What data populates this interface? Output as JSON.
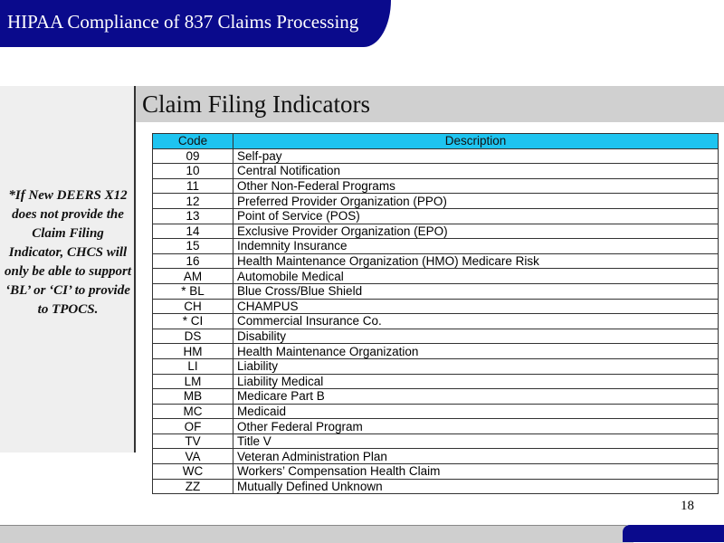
{
  "header": {
    "title": "HIPAA Compliance of 837 Claims Processing"
  },
  "slide_title": "Claim Filing Indicators",
  "note": "*If New DEERS X12 does not provide the Claim Filing Indicator, CHCS will only be able to support ‘BL’ or ‘CI’ to provide to TPOCS.",
  "table": {
    "headers": [
      "Code",
      "Description"
    ],
    "rows": [
      [
        "09",
        "Self-pay"
      ],
      [
        "10",
        "Central Notification"
      ],
      [
        "11",
        "Other Non-Federal Programs"
      ],
      [
        "12",
        "Preferred Provider Organization (PPO)"
      ],
      [
        "13",
        "Point of Service (POS)"
      ],
      [
        "14",
        "Exclusive Provider Organization (EPO)"
      ],
      [
        "15",
        "Indemnity Insurance"
      ],
      [
        "16",
        "Health Maintenance Organization (HMO) Medicare Risk"
      ],
      [
        "AM",
        "Automobile Medical"
      ],
      [
        "* BL",
        "Blue Cross/Blue Shield"
      ],
      [
        "CH",
        "CHAMPUS"
      ],
      [
        "* CI",
        "Commercial Insurance Co."
      ],
      [
        "DS",
        "Disability"
      ],
      [
        "HM",
        "Health Maintenance Organization"
      ],
      [
        "LI",
        "Liability"
      ],
      [
        "LM",
        "Liability Medical"
      ],
      [
        "MB",
        "Medicare Part B"
      ],
      [
        "MC",
        "Medicaid"
      ],
      [
        "OF",
        "Other Federal Program"
      ],
      [
        "TV",
        "Title V"
      ],
      [
        "VA",
        "Veteran Administration Plan"
      ],
      [
        "WC",
        "Workers’ Compensation Health Claim"
      ],
      [
        "ZZ",
        "Mutually Defined Unknown"
      ]
    ]
  },
  "page_number": "18",
  "colors": {
    "header_blue": "#0a0a8c",
    "table_header": "#1ec4f0"
  }
}
